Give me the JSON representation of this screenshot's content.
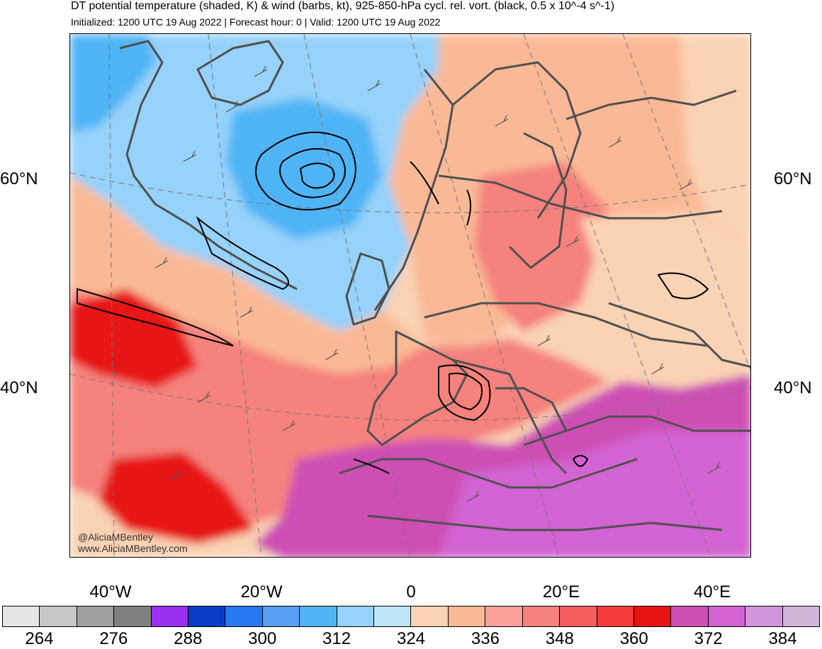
{
  "title": "DT potential temperature (shaded, K) & wind (barbs, kt), 925-850-hPa cycl. rel. vort. (black, 0.5 x 10^-4 s^-1)",
  "subtitle": "Initialized: 1200 UTC 19 Aug 2022 | Forecast hour: 0 | Valid: 1200 UTC 19 Aug 2022",
  "watermark": {
    "handle": "@AliciaMBentley",
    "site": "www.AliciaMBentley.com"
  },
  "latitude_labels": {
    "left": [
      "60°N",
      "40°N"
    ],
    "right": [
      "60°N",
      "40°N"
    ]
  },
  "longitude_labels": [
    "40°W",
    "20°W",
    "0",
    "20°E",
    "40°E"
  ],
  "colorbar": {
    "swatch_colors": [
      "#e6e6e6",
      "#c8c8c8",
      "#a0a0a0",
      "#808080",
      "#9b30f0",
      "#0a3cc8",
      "#2878f0",
      "#5aa0f5",
      "#50b4f5",
      "#96d2fa",
      "#bee6f8",
      "#fad2b4",
      "#fab996",
      "#fa9f9a",
      "#f5827d",
      "#f55f5f",
      "#f53c3c",
      "#e61414",
      "#cd50b4",
      "#d264d2",
      "#d296dc",
      "#d2b4d8"
    ],
    "tick_labels": [
      "264",
      "276",
      "288",
      "300",
      "312",
      "324",
      "336",
      "348",
      "360",
      "372",
      "384"
    ]
  },
  "map_colors": {
    "cold_air": "#96d2fa",
    "cool_air": "#bee6f8",
    "core": "#50b4f5",
    "peach": "#fad2b4",
    "salmon": "#fab996",
    "pink": "#f5827d",
    "red": "#e61414",
    "magenta": "#cd50b4",
    "purple": "#d264d2",
    "land_outline": "#505050",
    "contour": "#000000"
  }
}
